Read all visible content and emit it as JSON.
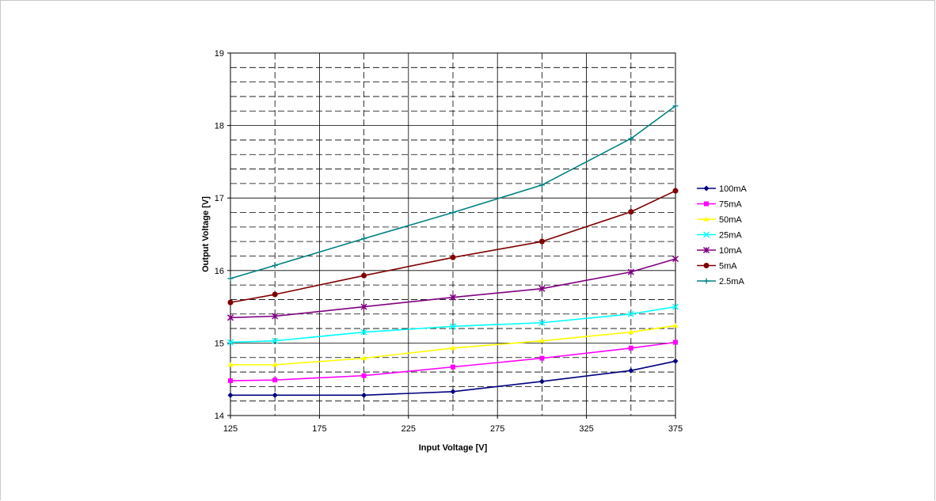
{
  "chart_data": {
    "type": "line",
    "title": "",
    "xlabel": "Input Voltage [V]",
    "ylabel": "Output Voltage [V]",
    "xlim": [
      125,
      375
    ],
    "ylim": [
      14,
      19
    ],
    "x_ticks": [
      "125",
      "175",
      "225",
      "275",
      "325",
      "375"
    ],
    "y_ticks": [
      "14",
      "15",
      "16",
      "17",
      "18",
      "19"
    ],
    "grid": true,
    "legend_position": "right",
    "x": [
      125,
      150,
      200,
      250,
      300,
      350,
      375
    ],
    "series": [
      {
        "name": "100mA",
        "color": "#000080",
        "marker": "diamond",
        "values": [
          14.28,
          14.28,
          14.28,
          14.33,
          14.47,
          14.62,
          14.75
        ]
      },
      {
        "name": "75mA",
        "color": "#ff00ff",
        "marker": "square",
        "values": [
          14.48,
          14.49,
          14.55,
          14.67,
          14.79,
          14.93,
          15.01
        ]
      },
      {
        "name": "50mA",
        "color": "#ffff00",
        "marker": "triangle",
        "values": [
          14.7,
          14.7,
          14.79,
          14.93,
          15.03,
          15.15,
          15.24
        ]
      },
      {
        "name": "25mA",
        "color": "#00ffff",
        "marker": "x",
        "values": [
          15.01,
          15.03,
          15.15,
          15.23,
          15.28,
          15.4,
          15.5
        ]
      },
      {
        "name": "10mA",
        "color": "#800080",
        "marker": "star",
        "values": [
          15.35,
          15.37,
          15.5,
          15.63,
          15.75,
          15.98,
          16.16
        ]
      },
      {
        "name": "5mA",
        "color": "#800000",
        "marker": "circle",
        "values": [
          15.56,
          15.67,
          15.93,
          16.18,
          16.4,
          16.81,
          17.1
        ]
      },
      {
        "name": "2.5mA",
        "color": "#008080",
        "marker": "plus",
        "values": [
          15.89,
          16.07,
          16.44,
          16.8,
          17.18,
          17.82,
          18.27
        ]
      }
    ]
  }
}
